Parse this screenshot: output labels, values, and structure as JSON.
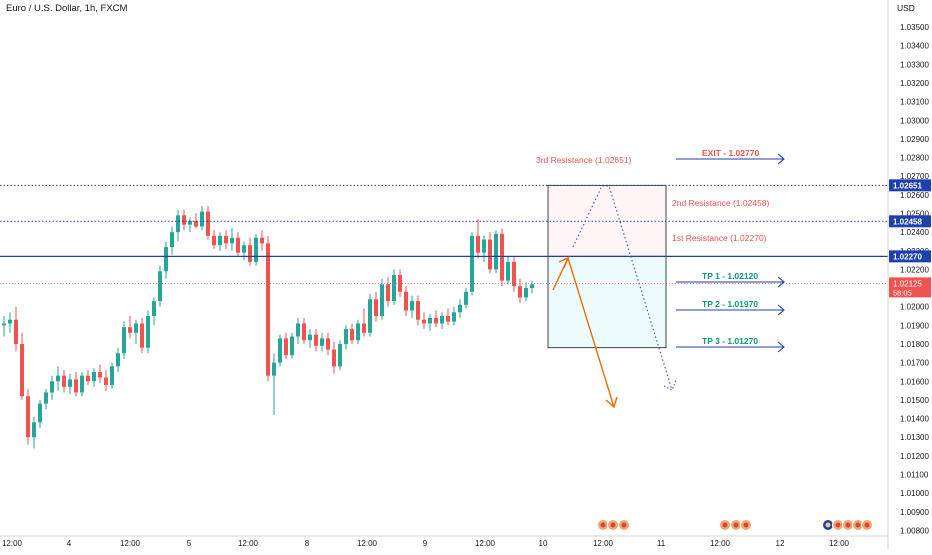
{
  "header": {
    "symbol_label": "Euro / U.S. Dollar, 1h, FXCM",
    "currency": "USD"
  },
  "colors": {
    "up": "#26a69a",
    "down": "#ef5350",
    "resistance_text": "#ef5350",
    "tp_text": "#089981",
    "line_blue": "#1e40af",
    "exit_text": "#ef5350",
    "up_arrow": "#ef6c00",
    "down_arrow": "#3f51b5",
    "price_tag": "#ef5350"
  },
  "chart_data": {
    "type": "candlestick",
    "yaxis": {
      "ticks": [
        "1.03500",
        "1.03400",
        "1.03300",
        "1.03200",
        "1.03100",
        "1.03000",
        "1.02900",
        "1.02800",
        "1.02700",
        "1.02600",
        "1.02500",
        "1.02400",
        "1.02300",
        "1.02200",
        "1.02100",
        "1.02000",
        "1.01900",
        "1.01800",
        "1.01700",
        "1.01600",
        "1.01500",
        "1.01400",
        "1.01300",
        "1.01200",
        "1.01100",
        "1.01000",
        "1.00900",
        "1.00800"
      ],
      "range": [
        1.0077,
        1.0357
      ]
    },
    "xaxis": {
      "ticks": [
        "12:00",
        "4",
        "12:00",
        "5",
        "12:00",
        "8",
        "12:00",
        "9",
        "12:00",
        "10",
        "12:00",
        "11",
        "12:00",
        "12",
        "12:00"
      ]
    },
    "last_price": {
      "value": "1.02125",
      "countdown": "58:05"
    },
    "price_labels": [
      {
        "value": "1.02651",
        "style": "dotted"
      },
      {
        "value": "1.02458",
        "style": "dotted"
      },
      {
        "value": "1.02270",
        "style": "solid"
      }
    ],
    "levels": [
      {
        "text": "3rd Resistance (1.02651)",
        "price": 1.02651,
        "kind": "resistance"
      },
      {
        "text": "2nd Resistance (1.02458)",
        "price": 1.02458,
        "kind": "resistance"
      },
      {
        "text": "1st Resistance (1.02270)",
        "price": 1.0227,
        "kind": "resistance"
      }
    ],
    "targets": [
      {
        "text": "EXIT - 1.02770",
        "price": 1.0277,
        "kind": "exit"
      },
      {
        "text": "TP 1 - 1.02120",
        "price": 1.0212,
        "kind": "tp"
      },
      {
        "text": "TP 2 - 1.01970",
        "price": 1.0197,
        "kind": "tp"
      },
      {
        "text": "TP 3 - 1.01270",
        "price": 1.0127,
        "kind": "tp"
      }
    ],
    "candles": [
      [
        1.019,
        1.0195,
        1.0184,
        1.0191
      ],
      [
        1.0191,
        1.0197,
        1.0186,
        1.0193
      ],
      [
        1.0193,
        1.02,
        1.0176,
        1.018
      ],
      [
        1.018,
        1.0186,
        1.015,
        1.0152
      ],
      [
        1.0152,
        1.0156,
        1.0126,
        1.013
      ],
      [
        1.013,
        1.0141,
        1.0124,
        1.0138
      ],
      [
        1.0138,
        1.015,
        1.0135,
        1.0148
      ],
      [
        1.0148,
        1.0156,
        1.0145,
        1.0154
      ],
      [
        1.0154,
        1.0163,
        1.015,
        1.016
      ],
      [
        1.016,
        1.0168,
        1.0155,
        1.0163
      ],
      [
        1.0163,
        1.0166,
        1.0154,
        1.0157
      ],
      [
        1.0157,
        1.0164,
        1.0153,
        1.0161
      ],
      [
        1.0161,
        1.0165,
        1.0152,
        1.0154
      ],
      [
        1.0154,
        1.0165,
        1.0152,
        1.0163
      ],
      [
        1.0163,
        1.0166,
        1.0158,
        1.016
      ],
      [
        1.016,
        1.0167,
        1.0157,
        1.0165
      ],
      [
        1.0165,
        1.0169,
        1.0159,
        1.0162
      ],
      [
        1.0162,
        1.0166,
        1.0155,
        1.0158
      ],
      [
        1.0158,
        1.017,
        1.0156,
        1.0168
      ],
      [
        1.0168,
        1.0178,
        1.0165,
        1.0175
      ],
      [
        1.0175,
        1.0192,
        1.0172,
        1.0189
      ],
      [
        1.0189,
        1.0195,
        1.0183,
        1.0186
      ],
      [
        1.0186,
        1.0193,
        1.018,
        1.0191
      ],
      [
        1.0191,
        1.0194,
        1.0175,
        1.0178
      ],
      [
        1.0178,
        1.0198,
        1.0175,
        1.0195
      ],
      [
        1.0195,
        1.0205,
        1.019,
        1.0203
      ],
      [
        1.0203,
        1.0222,
        1.02,
        1.0219
      ],
      [
        1.0219,
        1.0235,
        1.0215,
        1.0232
      ],
      [
        1.0232,
        1.0243,
        1.0228,
        1.024
      ],
      [
        1.024,
        1.0252,
        1.0235,
        1.0249
      ],
      [
        1.0249,
        1.0252,
        1.0241,
        1.0244
      ],
      [
        1.0244,
        1.0248,
        1.024,
        1.0246
      ],
      [
        1.0246,
        1.025,
        1.0242,
        1.0243
      ],
      [
        1.0243,
        1.0254,
        1.0241,
        1.0251
      ],
      [
        1.0251,
        1.0254,
        1.0236,
        1.0238
      ],
      [
        1.0238,
        1.0241,
        1.0231,
        1.0233
      ],
      [
        1.0233,
        1.024,
        1.023,
        1.0238
      ],
      [
        1.0238,
        1.0241,
        1.0231,
        1.0234
      ],
      [
        1.0234,
        1.0242,
        1.023,
        1.0237
      ],
      [
        1.0237,
        1.024,
        1.0227,
        1.0229
      ],
      [
        1.0229,
        1.0235,
        1.0225,
        1.0233
      ],
      [
        1.0233,
        1.0237,
        1.0222,
        1.0224
      ],
      [
        1.0224,
        1.0239,
        1.0222,
        1.0237
      ],
      [
        1.0237,
        1.0241,
        1.023,
        1.0234
      ],
      [
        1.0234,
        1.0238,
        1.016,
        1.0163
      ],
      [
        1.0163,
        1.0175,
        1.0142,
        1.017
      ],
      [
        1.017,
        1.0185,
        1.0168,
        1.0183
      ],
      [
        1.0183,
        1.0186,
        1.0172,
        1.0174
      ],
      [
        1.0174,
        1.0186,
        1.0172,
        1.0184
      ],
      [
        1.0184,
        1.0194,
        1.018,
        1.0191
      ],
      [
        1.0191,
        1.0194,
        1.018,
        1.0182
      ],
      [
        1.0182,
        1.0188,
        1.0178,
        1.0185
      ],
      [
        1.0185,
        1.0188,
        1.0176,
        1.0179
      ],
      [
        1.0179,
        1.0186,
        1.0176,
        1.0183
      ],
      [
        1.0183,
        1.0186,
        1.0174,
        1.0177
      ],
      [
        1.0177,
        1.0181,
        1.0164,
        1.0168
      ],
      [
        1.0168,
        1.0182,
        1.0166,
        1.018
      ],
      [
        1.018,
        1.019,
        1.0177,
        1.0188
      ],
      [
        1.0188,
        1.0191,
        1.018,
        1.0182
      ],
      [
        1.0182,
        1.0193,
        1.018,
        1.0191
      ],
      [
        1.0191,
        1.0199,
        1.0184,
        1.0186
      ],
      [
        1.0186,
        1.0207,
        1.0184,
        1.0204
      ],
      [
        1.0204,
        1.0208,
        1.0192,
        1.0195
      ],
      [
        1.0195,
        1.0215,
        1.0193,
        1.0212
      ],
      [
        1.0212,
        1.0216,
        1.02,
        1.0203
      ],
      [
        1.0203,
        1.022,
        1.0201,
        1.0217
      ],
      [
        1.0217,
        1.022,
        1.0205,
        1.0208
      ],
      [
        1.0208,
        1.0211,
        1.0195,
        1.0198
      ],
      [
        1.0198,
        1.0206,
        1.0194,
        1.0203
      ],
      [
        1.0203,
        1.0206,
        1.019,
        1.0193
      ],
      [
        1.0193,
        1.0197,
        1.0188,
        1.0191
      ],
      [
        1.0191,
        1.0196,
        1.0187,
        1.0194
      ],
      [
        1.0194,
        1.0198,
        1.0189,
        1.0191
      ],
      [
        1.0191,
        1.0197,
        1.0188,
        1.0195
      ],
      [
        1.0195,
        1.0199,
        1.019,
        1.0192
      ],
      [
        1.0192,
        1.02,
        1.019,
        1.0197
      ],
      [
        1.0197,
        1.0204,
        1.0194,
        1.0201
      ],
      [
        1.0201,
        1.021,
        1.0199,
        1.0208
      ],
      [
        1.0208,
        1.024,
        1.0206,
        1.0238
      ],
      [
        1.0238,
        1.0247,
        1.0226,
        1.0229
      ],
      [
        1.0229,
        1.0238,
        1.0224,
        1.0236
      ],
      [
        1.0236,
        1.024,
        1.0218,
        1.022
      ],
      [
        1.022,
        1.0241,
        1.0218,
        1.0239
      ],
      [
        1.0239,
        1.0242,
        1.0211,
        1.0214
      ],
      [
        1.0214,
        1.0227,
        1.0212,
        1.0224
      ],
      [
        1.0224,
        1.0227,
        1.0208,
        1.0211
      ],
      [
        1.0211,
        1.0215,
        1.0202,
        1.0205
      ],
      [
        1.0205,
        1.0213,
        1.0203,
        1.021
      ],
      [
        1.021,
        1.0214,
        1.0207,
        1.0212
      ]
    ]
  }
}
